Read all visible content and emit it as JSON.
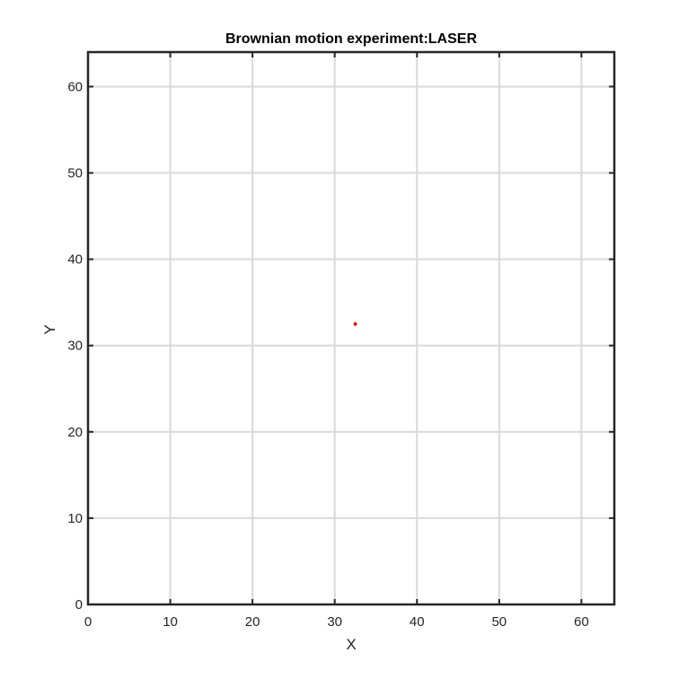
{
  "chart_data": {
    "type": "scatter",
    "title": "Brownian motion experiment:LASER",
    "xlabel": "X",
    "ylabel": "Y",
    "xlim": [
      0,
      64
    ],
    "ylim": [
      0,
      64
    ],
    "xticks": [
      0,
      10,
      20,
      30,
      40,
      50,
      60
    ],
    "yticks": [
      0,
      10,
      20,
      30,
      40,
      50,
      60
    ],
    "grid": true,
    "colors": {
      "grid": "#d9d9d9",
      "axis": "#262626",
      "point": "#ff0000"
    },
    "series": [
      {
        "x": [
          32.5
        ],
        "y": [
          32.5
        ]
      }
    ]
  }
}
